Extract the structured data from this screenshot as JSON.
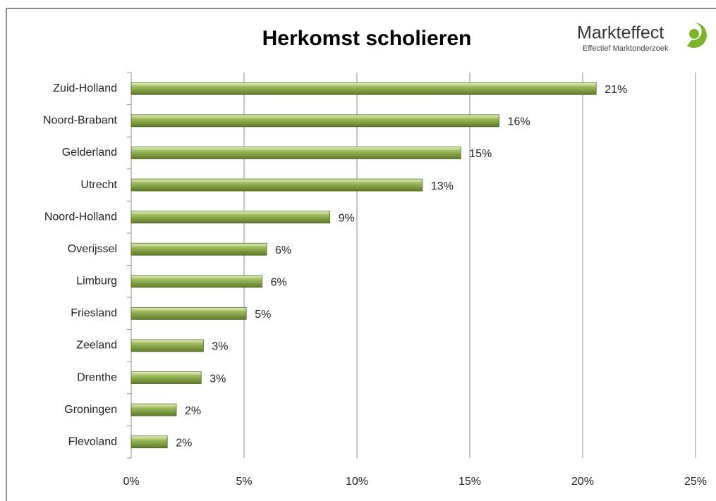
{
  "chart_data": {
    "type": "bar",
    "orientation": "horizontal",
    "title": "Herkomst scholieren",
    "logo": {
      "name": "Markteffect",
      "tagline": "Effectief Marktonderzoek"
    },
    "categories": [
      "Zuid-Holland",
      "Noord-Brabant",
      "Gelderland",
      "Utrecht",
      "Noord-Holland",
      "Overijssel",
      "Limburg",
      "Friesland",
      "Zeeland",
      "Drenthe",
      "Groningen",
      "Flevoland"
    ],
    "values": [
      20.6,
      16.3,
      14.6,
      12.9,
      8.8,
      6.0,
      5.8,
      5.1,
      3.2,
      3.1,
      2.0,
      1.6
    ],
    "value_labels": [
      "21%",
      "16%",
      "15%",
      "13%",
      "9%",
      "6%",
      "6%",
      "5%",
      "3%",
      "3%",
      "2%",
      "2%"
    ],
    "color": "#9bbb59",
    "xlim": [
      0,
      25
    ],
    "xticks": [
      {
        "value": 0,
        "label": "0%"
      },
      {
        "value": 5,
        "label": "5%"
      },
      {
        "value": 10,
        "label": "10%"
      },
      {
        "value": 15,
        "label": "15%"
      },
      {
        "value": 20,
        "label": "20%"
      },
      {
        "value": 25,
        "label": "25%"
      }
    ],
    "grid": true
  }
}
